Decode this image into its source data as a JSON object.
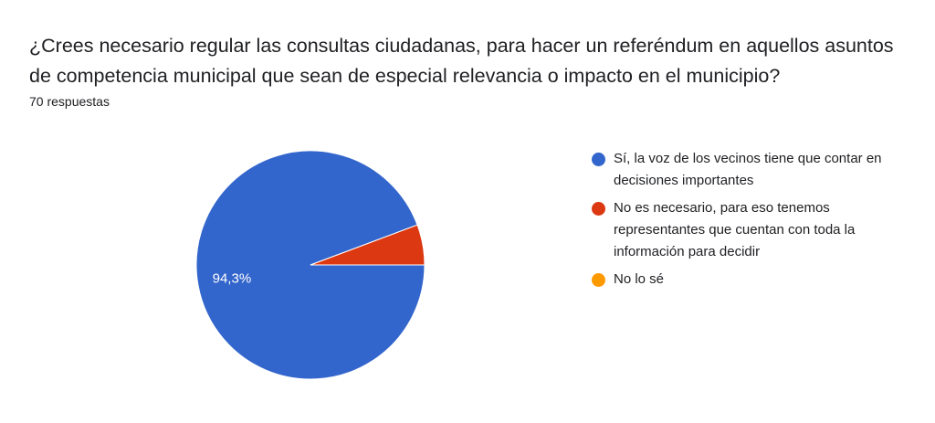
{
  "question": {
    "title": "¿Crees necesario regular las consultas ciudadanas, para hacer un referéndum en aquellos asuntos de competencia  municipal que sean de especial relevancia o impacto en el municipio?",
    "responses": "70 respuestas"
  },
  "chart_data": {
    "type": "pie",
    "categories": [
      "Sí, la voz de los vecinos tiene que contar en decisiones importantes",
      "No es necesario, para eso tenemos representantes que cuentan con toda la información para decidir",
      "No lo sé"
    ],
    "values": [
      94.3,
      5.7,
      0
    ],
    "colors": [
      "#3366cc",
      "#dc3912",
      "#ff9900"
    ],
    "data_labels": [
      "94,3%",
      "",
      ""
    ],
    "legend_position": "right"
  }
}
